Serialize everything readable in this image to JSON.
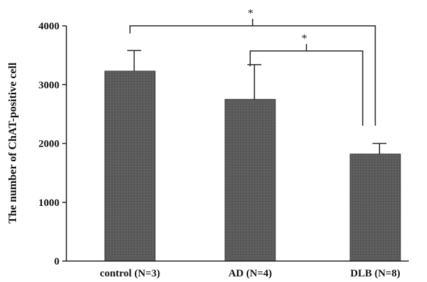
{
  "chart_data": {
    "type": "bar",
    "title": "",
    "xlabel": "",
    "ylabel": "The number of ChAT-positive cell",
    "categories": [
      "control (N=3)",
      "AD (N=4)",
      "DLB (N=8)"
    ],
    "values": [
      3230,
      2750,
      1820
    ],
    "error": [
      350,
      590,
      180
    ],
    "ylim": [
      0,
      4000
    ],
    "yticks": [
      0,
      1000,
      2000,
      3000,
      4000
    ],
    "ytick_labels": [
      "0",
      "1000",
      "2000",
      "3000",
      "4000"
    ],
    "grid": false,
    "legend": "none",
    "bar_color": "#5c5c5c",
    "significance": [
      {
        "from": "control (N=3)",
        "to": "DLB (N=8)",
        "mark": "*"
      },
      {
        "from": "AD (N=4)",
        "to": "DLB (N=8)",
        "mark": "*"
      }
    ]
  }
}
